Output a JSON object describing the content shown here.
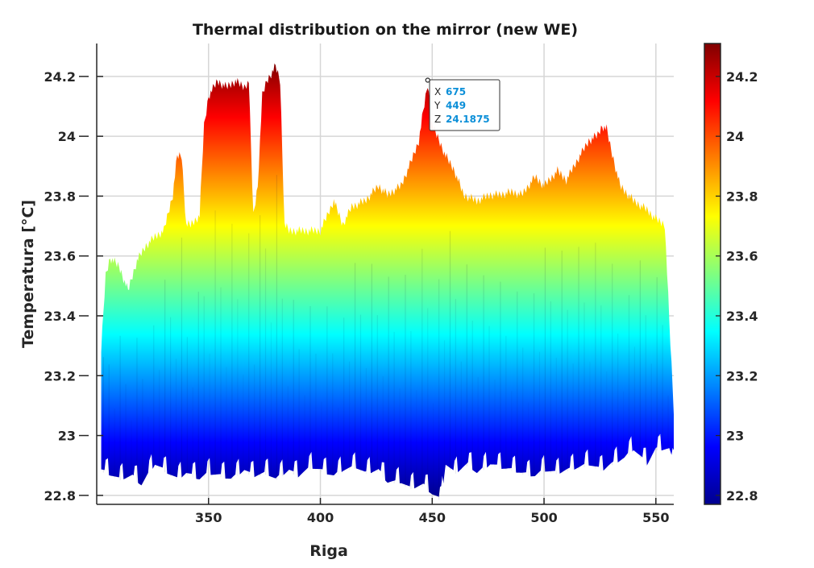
{
  "chart_data": {
    "type": "area",
    "title": "Thermal distribution on the mirror (new WE)",
    "xlabel": "Riga",
    "ylabel": "Temperatura [°C]",
    "xlim": [
      300,
      558
    ],
    "ylim": [
      22.77,
      24.31
    ],
    "xticks": [
      350,
      400,
      450,
      500,
      550
    ],
    "yticks": [
      22.8,
      23,
      23.2,
      23.4,
      23.6,
      23.8,
      24,
      24.2
    ],
    "ytick_labels": [
      "22.8",
      "23",
      "23.2",
      "23.4",
      "23.6",
      "23.8",
      "24",
      "24.2"
    ],
    "grid": true,
    "colormap": "jet",
    "colorbar": {
      "range": [
        22.77,
        24.31
      ],
      "ticks": [
        22.8,
        23,
        23.2,
        23.4,
        23.6,
        23.8,
        24,
        24.2
      ],
      "tick_labels": [
        "22.8",
        "23",
        "23.2",
        "23.4",
        "23.6",
        "23.8",
        "24",
        "24.2"
      ]
    },
    "upper_envelope": {
      "x": [
        302,
        304,
        306,
        310,
        314,
        318,
        322,
        326,
        330,
        334,
        336,
        338,
        340,
        342,
        346,
        348,
        350,
        354,
        358,
        362,
        366,
        368,
        370,
        372,
        374,
        376,
        380,
        382,
        384,
        386,
        390,
        400,
        406,
        410,
        414,
        420,
        426,
        430,
        436,
        440,
        444,
        446,
        448,
        450,
        452,
        456,
        460,
        464,
        470,
        476,
        480,
        486,
        490,
        496,
        500,
        506,
        510,
        516,
        520,
        524,
        526,
        528,
        530,
        534,
        540,
        546,
        550,
        554,
        556,
        558
      ],
      "y": [
        23.3,
        23.55,
        23.61,
        23.58,
        23.5,
        23.6,
        23.65,
        23.68,
        23.7,
        23.82,
        23.95,
        23.95,
        23.72,
        23.72,
        23.75,
        24.05,
        24.15,
        24.2,
        24.18,
        24.2,
        24.18,
        24.2,
        23.75,
        23.85,
        24.15,
        24.2,
        24.25,
        24.2,
        23.72,
        23.7,
        23.7,
        23.7,
        23.8,
        23.72,
        23.78,
        23.8,
        23.85,
        23.82,
        23.85,
        23.92,
        24.0,
        24.1,
        24.19,
        24.05,
        24.02,
        23.95,
        23.9,
        23.82,
        23.8,
        23.82,
        23.82,
        23.83,
        23.82,
        23.88,
        23.85,
        23.9,
        23.87,
        23.95,
        24.0,
        24.02,
        24.05,
        24.04,
        23.97,
        23.85,
        23.8,
        23.77,
        23.74,
        23.72,
        23.4,
        23.1
      ]
    },
    "lower_envelope": {
      "x": [
        302,
        310,
        316,
        320,
        326,
        330,
        336,
        340,
        346,
        350,
        356,
        360,
        366,
        370,
        376,
        380,
        386,
        390,
        396,
        400,
        406,
        410,
        416,
        420,
        426,
        430,
        436,
        440,
        446,
        450,
        454,
        456,
        460,
        466,
        470,
        476,
        480,
        486,
        490,
        496,
        500,
        506,
        510,
        516,
        520,
        526,
        530,
        536,
        540,
        546,
        550,
        556,
        558
      ],
      "y": [
        22.88,
        22.85,
        22.86,
        22.83,
        22.9,
        22.88,
        22.85,
        22.87,
        22.85,
        22.87,
        22.86,
        22.85,
        22.88,
        22.86,
        22.87,
        22.85,
        22.88,
        22.86,
        22.89,
        22.88,
        22.86,
        22.88,
        22.89,
        22.87,
        22.88,
        22.84,
        22.84,
        22.82,
        22.83,
        22.8,
        22.78,
        22.9,
        22.87,
        22.9,
        22.87,
        22.9,
        22.89,
        22.88,
        22.87,
        22.86,
        22.88,
        22.87,
        22.88,
        22.89,
        22.9,
        22.88,
        22.9,
        22.92,
        22.95,
        22.9,
        22.95,
        22.95,
        22.9
      ]
    },
    "datatip": {
      "point": [
        448,
        24.1875
      ],
      "x_key": "X",
      "x_value": "675",
      "y_key": "Y",
      "y_value": "449",
      "z_key": "Z",
      "z_value": "24.1875"
    }
  }
}
